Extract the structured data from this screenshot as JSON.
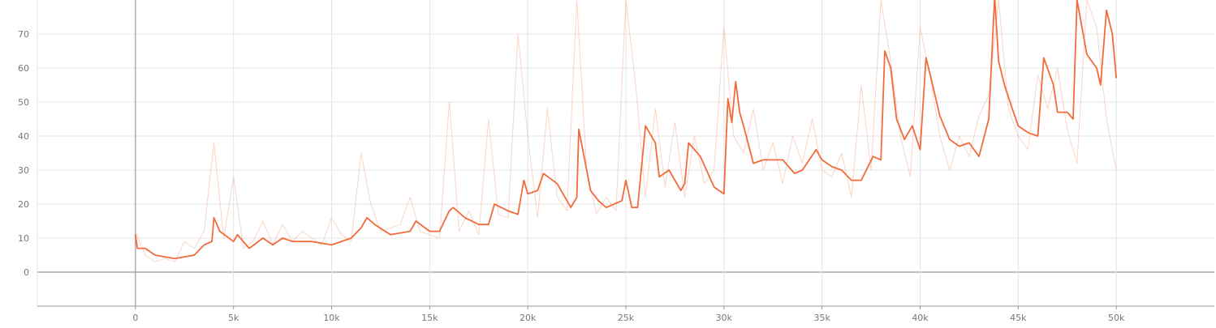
{
  "colors": {
    "raw": "#f4a582",
    "smoothed": "#f26b3a",
    "grid": "#e4e4e4",
    "axis": "#999999",
    "zero_line": "#9a9a9a"
  },
  "chart_data": {
    "type": "line",
    "title": "",
    "xlabel": "",
    "ylabel": "",
    "xlim": [
      -5000,
      55000
    ],
    "ylim": [
      -10,
      80
    ],
    "grid": true,
    "x_ticks": [
      0,
      5000,
      10000,
      15000,
      20000,
      25000,
      30000,
      35000,
      40000,
      45000,
      50000
    ],
    "x_tick_labels": [
      "0",
      "5k",
      "10k",
      "15k",
      "20k",
      "25k",
      "30k",
      "35k",
      "40k",
      "45k",
      "50k"
    ],
    "y_ticks": [
      0,
      10,
      20,
      30,
      40,
      50,
      60,
      70
    ],
    "y_tick_labels": [
      "0",
      "10",
      "20",
      "30",
      "40",
      "50",
      "60",
      "70"
    ],
    "series": [
      {
        "style": "raw",
        "x": [
          0,
          500,
          1000,
          1500,
          2000,
          2500,
          3000,
          3500,
          4000,
          4500,
          5000,
          5500,
          6000,
          6500,
          7000,
          7500,
          8000,
          8500,
          9000,
          9500,
          10000,
          10500,
          11000,
          11500,
          12000,
          12500,
          13000,
          13500,
          14000,
          14500,
          15000,
          15500,
          16000,
          16500,
          17000,
          17500,
          18000,
          18500,
          19000,
          19500,
          20000,
          20500,
          21000,
          21500,
          22000,
          22500,
          23000,
          23500,
          24000,
          24500,
          25000,
          25500,
          26000,
          26500,
          27000,
          27500,
          28000,
          28500,
          29000,
          29500,
          30000,
          30500,
          31000,
          31500,
          32000,
          32500,
          33000,
          33500,
          34000,
          34500,
          35000,
          35500,
          36000,
          36500,
          37000,
          37500,
          38000,
          38500,
          39000,
          39500,
          40000,
          40500,
          41000,
          41500,
          42000,
          42500,
          43000,
          43500,
          44000,
          44500,
          45000,
          45500,
          46000,
          46500,
          47000,
          47500,
          48000,
          48500,
          49000,
          49500,
          50000
        ],
        "y": [
          12,
          5,
          3,
          4,
          3,
          9,
          7,
          12,
          38,
          10,
          28,
          7,
          9,
          15,
          8,
          14,
          9,
          12,
          10,
          8,
          16,
          11,
          9,
          35,
          20,
          12,
          13,
          14,
          22,
          12,
          11,
          10,
          50,
          12,
          18,
          11,
          45,
          17,
          16,
          70,
          40,
          16,
          48,
          22,
          18,
          80,
          30,
          17,
          22,
          18,
          80,
          55,
          22,
          48,
          25,
          44,
          22,
          40,
          26,
          30,
          72,
          40,
          35,
          48,
          30,
          38,
          26,
          40,
          32,
          45,
          30,
          28,
          35,
          22,
          55,
          30,
          80,
          62,
          40,
          28,
          72,
          58,
          40,
          30,
          40,
          34,
          46,
          52,
          80,
          48,
          40,
          36,
          58,
          48,
          60,
          42,
          32,
          80,
          72,
          45,
          30
        ]
      },
      {
        "style": "smoothed",
        "x": [
          0,
          100,
          500,
          1000,
          2000,
          3000,
          3500,
          3900,
          4000,
          4300,
          5000,
          5200,
          5800,
          6500,
          7000,
          7500,
          8000,
          9000,
          10000,
          11000,
          11500,
          11800,
          12200,
          13000,
          14000,
          14300,
          15000,
          15500,
          16000,
          16200,
          16800,
          17500,
          18000,
          18300,
          19000,
          19500,
          19800,
          20000,
          20500,
          20800,
          21500,
          22200,
          22500,
          22600,
          22900,
          23200,
          23600,
          24000,
          24800,
          25000,
          25300,
          25600,
          26000,
          26500,
          26700,
          27200,
          27800,
          28000,
          28200,
          28800,
          29500,
          30000,
          30200,
          30400,
          30600,
          30800,
          31000,
          31500,
          32000,
          33000,
          33600,
          34000,
          34700,
          35000,
          35500,
          36000,
          36500,
          37000,
          37600,
          38000,
          38200,
          38500,
          38800,
          39200,
          39600,
          40000,
          40300,
          40600,
          41000,
          41500,
          42000,
          42500,
          43000,
          43500,
          43800,
          44000,
          44300,
          44700,
          45000,
          45500,
          46000,
          46300,
          46800,
          47000,
          47500,
          47800,
          48000,
          48500,
          49000,
          49200,
          49500,
          49800,
          50000
        ],
        "y": [
          11,
          7,
          7,
          5,
          4,
          5,
          8,
          9,
          16,
          12,
          9,
          11,
          7,
          10,
          8,
          10,
          9,
          9,
          8,
          10,
          13,
          16,
          14,
          11,
          12,
          15,
          12,
          12,
          18,
          19,
          16,
          14,
          14,
          20,
          18,
          17,
          27,
          23,
          24,
          29,
          26,
          19,
          22,
          42,
          33,
          24,
          21,
          19,
          21,
          27,
          19,
          19,
          43,
          38,
          28,
          30,
          24,
          26,
          38,
          34,
          25,
          23,
          51,
          44,
          56,
          47,
          43,
          32,
          33,
          33,
          29,
          30,
          36,
          33,
          31,
          30,
          27,
          27,
          34,
          33,
          65,
          60,
          45,
          39,
          43,
          36,
          63,
          56,
          46,
          39,
          37,
          38,
          34,
          45,
          81,
          62,
          55,
          48,
          43,
          41,
          40,
          63,
          55,
          47,
          47,
          45,
          80,
          64,
          60,
          55,
          77,
          70,
          57
        ]
      }
    ]
  }
}
